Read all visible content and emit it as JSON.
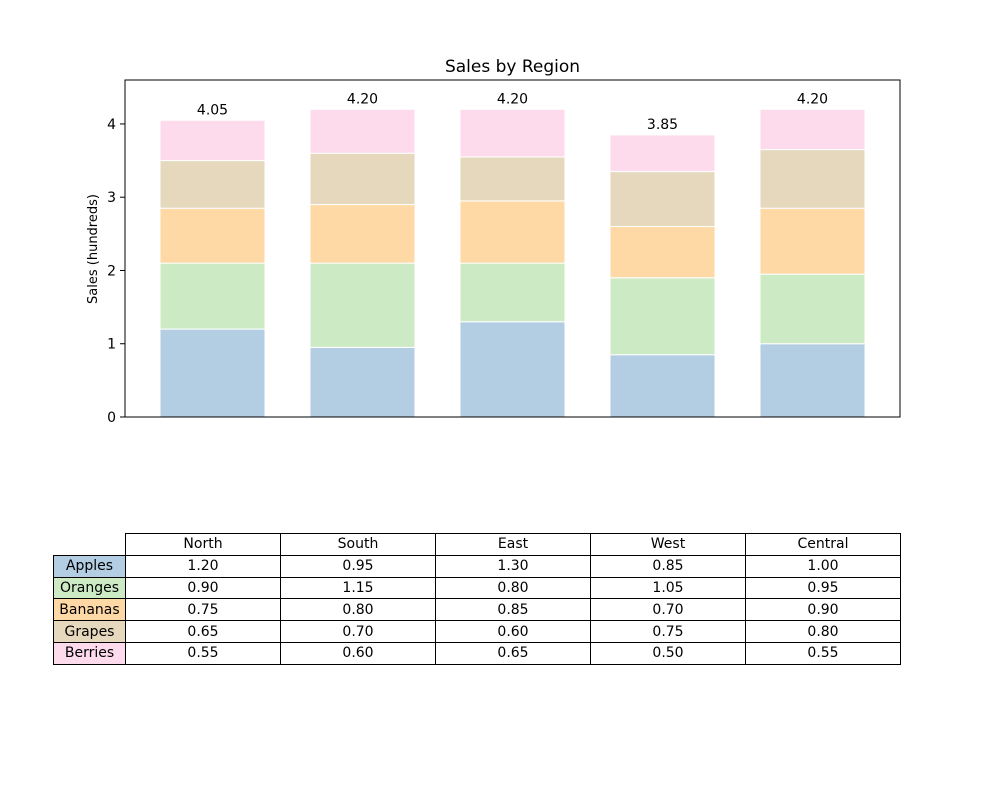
{
  "chart_data": {
    "type": "bar",
    "stacked": true,
    "title": "Sales by Region",
    "xlabel": "",
    "ylabel": "Sales (hundreds)",
    "ylim": [
      0,
      4.6
    ],
    "yticks": [
      0,
      1,
      2,
      3,
      4
    ],
    "grid": false,
    "categories": [
      "North",
      "South",
      "East",
      "West",
      "Central"
    ],
    "series": [
      {
        "name": "Apples",
        "color": "#b3cde3",
        "values": [
          1.2,
          0.95,
          1.3,
          0.85,
          1.0
        ]
      },
      {
        "name": "Oranges",
        "color": "#ccebc5",
        "values": [
          0.9,
          1.15,
          0.8,
          1.05,
          0.95
        ]
      },
      {
        "name": "Bananas",
        "color": "#fed9a6",
        "values": [
          0.75,
          0.8,
          0.85,
          0.7,
          0.9
        ]
      },
      {
        "name": "Grapes",
        "color": "#e5d8bd",
        "values": [
          0.65,
          0.7,
          0.6,
          0.75,
          0.8
        ]
      },
      {
        "name": "Berries",
        "color": "#fddaec",
        "values": [
          0.55,
          0.6,
          0.65,
          0.5,
          0.55
        ]
      }
    ],
    "totals": [
      "4.05",
      "4.20",
      "4.20",
      "3.85",
      "4.20"
    ],
    "table": {
      "cells": [
        [
          "1.20",
          "0.95",
          "1.30",
          "0.85",
          "1.00"
        ],
        [
          "0.90",
          "1.15",
          "0.80",
          "1.05",
          "0.95"
        ],
        [
          "0.75",
          "0.80",
          "0.85",
          "0.70",
          "0.90"
        ],
        [
          "0.65",
          "0.70",
          "0.60",
          "0.75",
          "0.80"
        ],
        [
          "0.55",
          "0.60",
          "0.65",
          "0.50",
          "0.55"
        ]
      ]
    }
  }
}
